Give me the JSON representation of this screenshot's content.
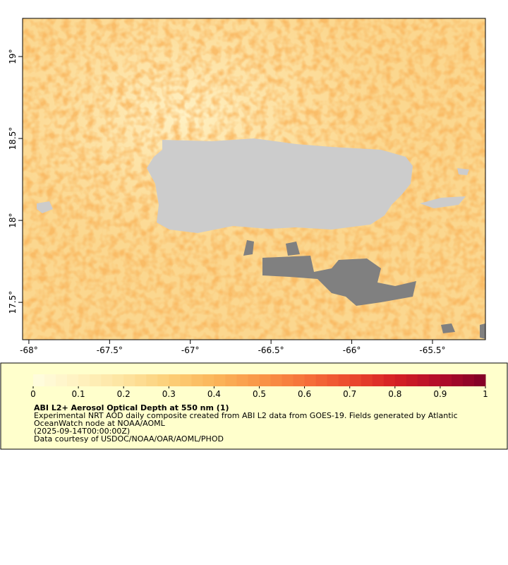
{
  "chart_data": {
    "type": "map",
    "xlim": [
      -68.039,
      -65.172
    ],
    "ylim": [
      17.272,
      19.233
    ],
    "xticks": [
      {
        "value": -68,
        "label": "-68°"
      },
      {
        "value": -67.5,
        "label": "-67.5°"
      },
      {
        "value": -67,
        "label": "-67°"
      },
      {
        "value": -66.5,
        "label": "-66.5°"
      },
      {
        "value": -66,
        "label": "-66°"
      },
      {
        "value": -65.5,
        "label": "-65.5°"
      }
    ],
    "yticks": [
      {
        "value": 17.5,
        "label": "17.5°"
      },
      {
        "value": 18,
        "label": "18°"
      },
      {
        "value": 18.5,
        "label": "18.5°"
      },
      {
        "value": 19,
        "label": "19°"
      }
    ],
    "colorbar": {
      "lim": [
        0,
        1
      ],
      "ticks": [
        0,
        0.1,
        0.2,
        0.3,
        0.4,
        0.5,
        0.6,
        0.7,
        0.8,
        0.9,
        1
      ],
      "colors": [
        "#fffde0",
        "#fff2c0",
        "#fde4a0",
        "#fccf78",
        "#fbb65a",
        "#f99648",
        "#f6723a",
        "#ec4a2e",
        "#d51f24",
        "#b20b2a",
        "#800026"
      ]
    },
    "legend": {
      "title": "ABI L2+ Aerosol Optical Depth at 550 nm (1)",
      "lines": [
        "Experimental NRT AOD daily composite created from ABI L2 data from GOES-19. Fields generated by Atlantic",
        "OceanWatch node at NOAA/AOML",
        "(2025-09-14T00:00:00Z)",
        "Data courtesy of USDOC/NOAA/OAR/AOML/PHOD"
      ]
    }
  }
}
